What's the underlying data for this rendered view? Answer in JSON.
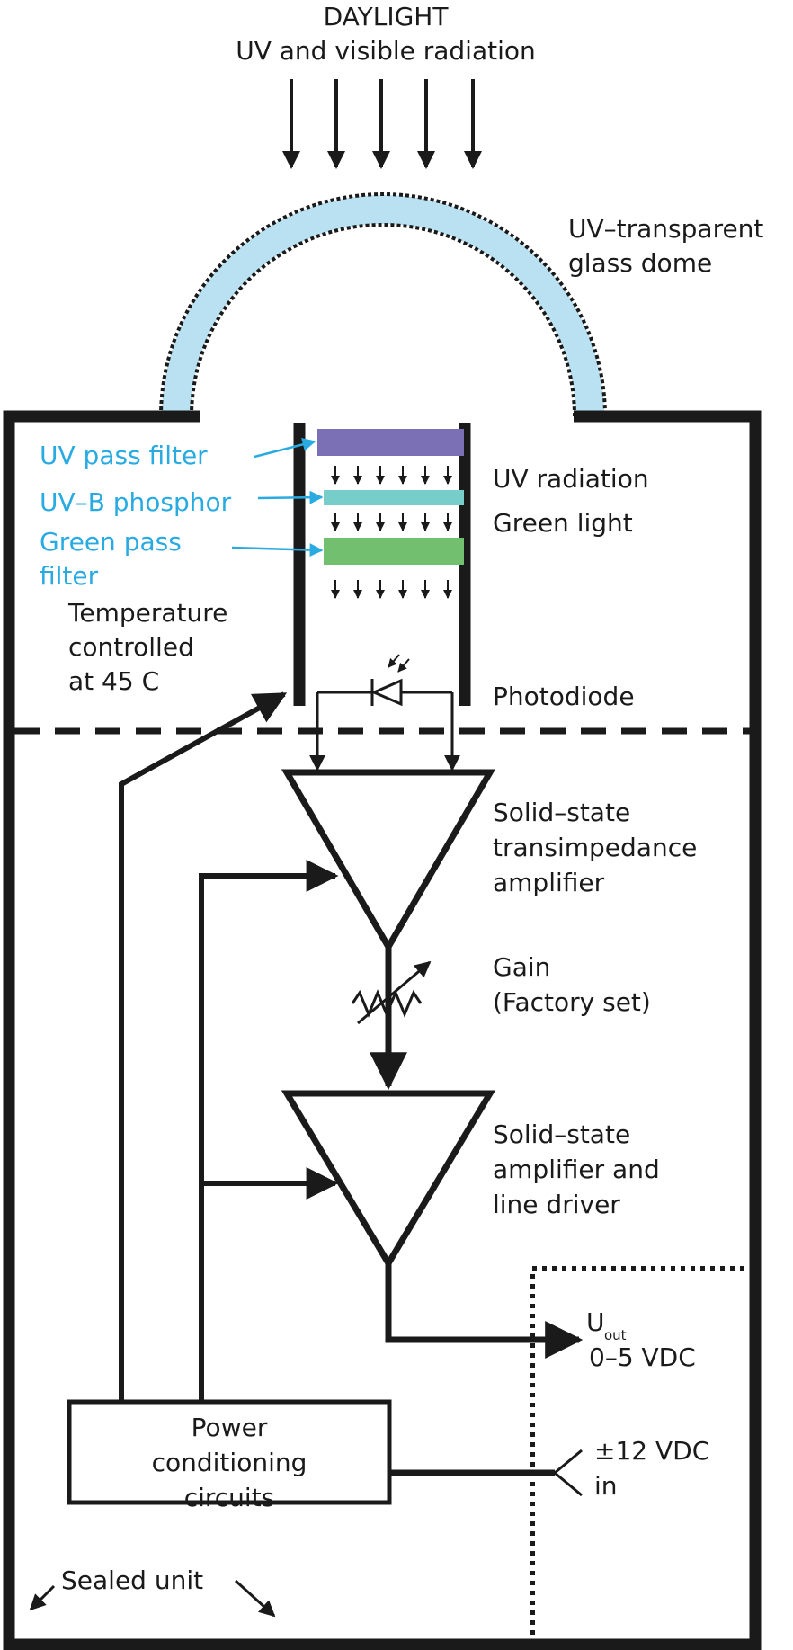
{
  "header": {
    "title": "DAYLIGHT",
    "subtitle": "UV and visible radiation"
  },
  "dome": {
    "label_line1": "UV–transparent",
    "label_line2": "glass dome"
  },
  "filters": {
    "uv_pass": "UV pass filter",
    "uvb_phosphor": "UV–B phosphor",
    "green_pass_line1": "Green pass",
    "green_pass_line2": "filter"
  },
  "radiation": {
    "uv": "UV radiation",
    "green": "Green light"
  },
  "temperature": {
    "line1": "Temperature",
    "line2": "controlled",
    "line3": "at 45 C"
  },
  "photodiode": {
    "label": "Photodiode"
  },
  "amp1": {
    "line1": "Solid–state",
    "line2": "transimpedance",
    "line3": "amplifier"
  },
  "gain": {
    "line1": "Gain",
    "line2": "(Factory set)"
  },
  "amp2": {
    "line1": "Solid–state",
    "line2": "amplifier and",
    "line3": "line driver"
  },
  "output": {
    "symbol": "U",
    "subscript": "out",
    "range": "0–5 VDC"
  },
  "supply": {
    "line1": "±12 VDC",
    "line2": "in"
  },
  "power": {
    "line1": "Power",
    "line2": "conditioning",
    "line3": "circuits"
  },
  "sealed": {
    "label": "Sealed unit"
  },
  "colors": {
    "dome_fill": "#b9e1f1",
    "uv_filter": "#7b6fb5",
    "phosphor": "#76cdc9",
    "green_filter": "#72c06f",
    "annotation_blue": "#29abe2",
    "ink": "#1a1a1a"
  }
}
